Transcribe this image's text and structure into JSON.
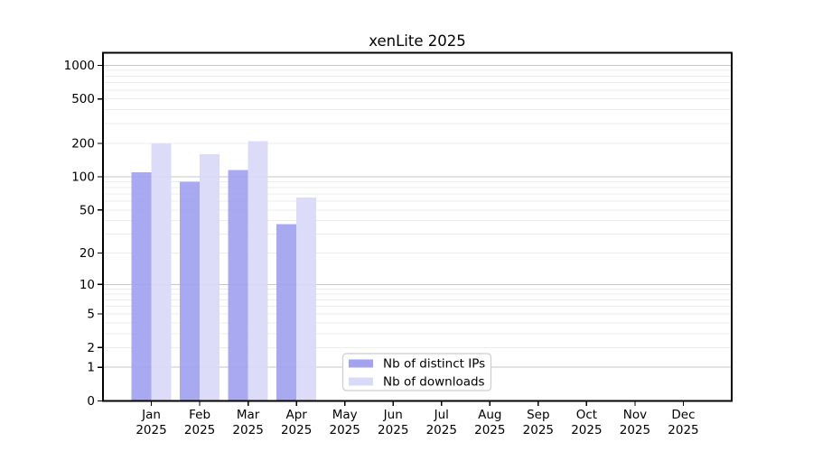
{
  "chart_data": {
    "type": "bar",
    "title": "xenLite 2025",
    "categories": [
      "Jan",
      "Feb",
      "Mar",
      "Apr",
      "May",
      "Jun",
      "Jul",
      "Aug",
      "Sep",
      "Oct",
      "Nov",
      "Dec"
    ],
    "x_year_suffix": "2025",
    "series": [
      {
        "name": "Nb of distinct IPs",
        "color": "#a2a2f0",
        "values": [
          110,
          90,
          115,
          37,
          0,
          0,
          0,
          0,
          0,
          0,
          0,
          0
        ]
      },
      {
        "name": "Nb of downloads",
        "color": "#d9d9f8",
        "values": [
          200,
          160,
          210,
          65,
          0,
          0,
          0,
          0,
          0,
          0,
          0,
          0
        ]
      }
    ],
    "y_ticks": [
      0,
      1,
      2,
      5,
      10,
      20,
      50,
      100,
      200,
      500,
      1000
    ],
    "y_scale": "log1p",
    "ylim": [
      0,
      1300
    ],
    "grid": true,
    "legend_position": "lower center",
    "colors": {
      "grid_minor": "#ececec",
      "grid_major": "#c6c6c6",
      "axis": "#000000",
      "text": "#000000",
      "legend_border": "#cccccc",
      "legend_bg": "#ffffff",
      "background": "#ffffff"
    }
  }
}
